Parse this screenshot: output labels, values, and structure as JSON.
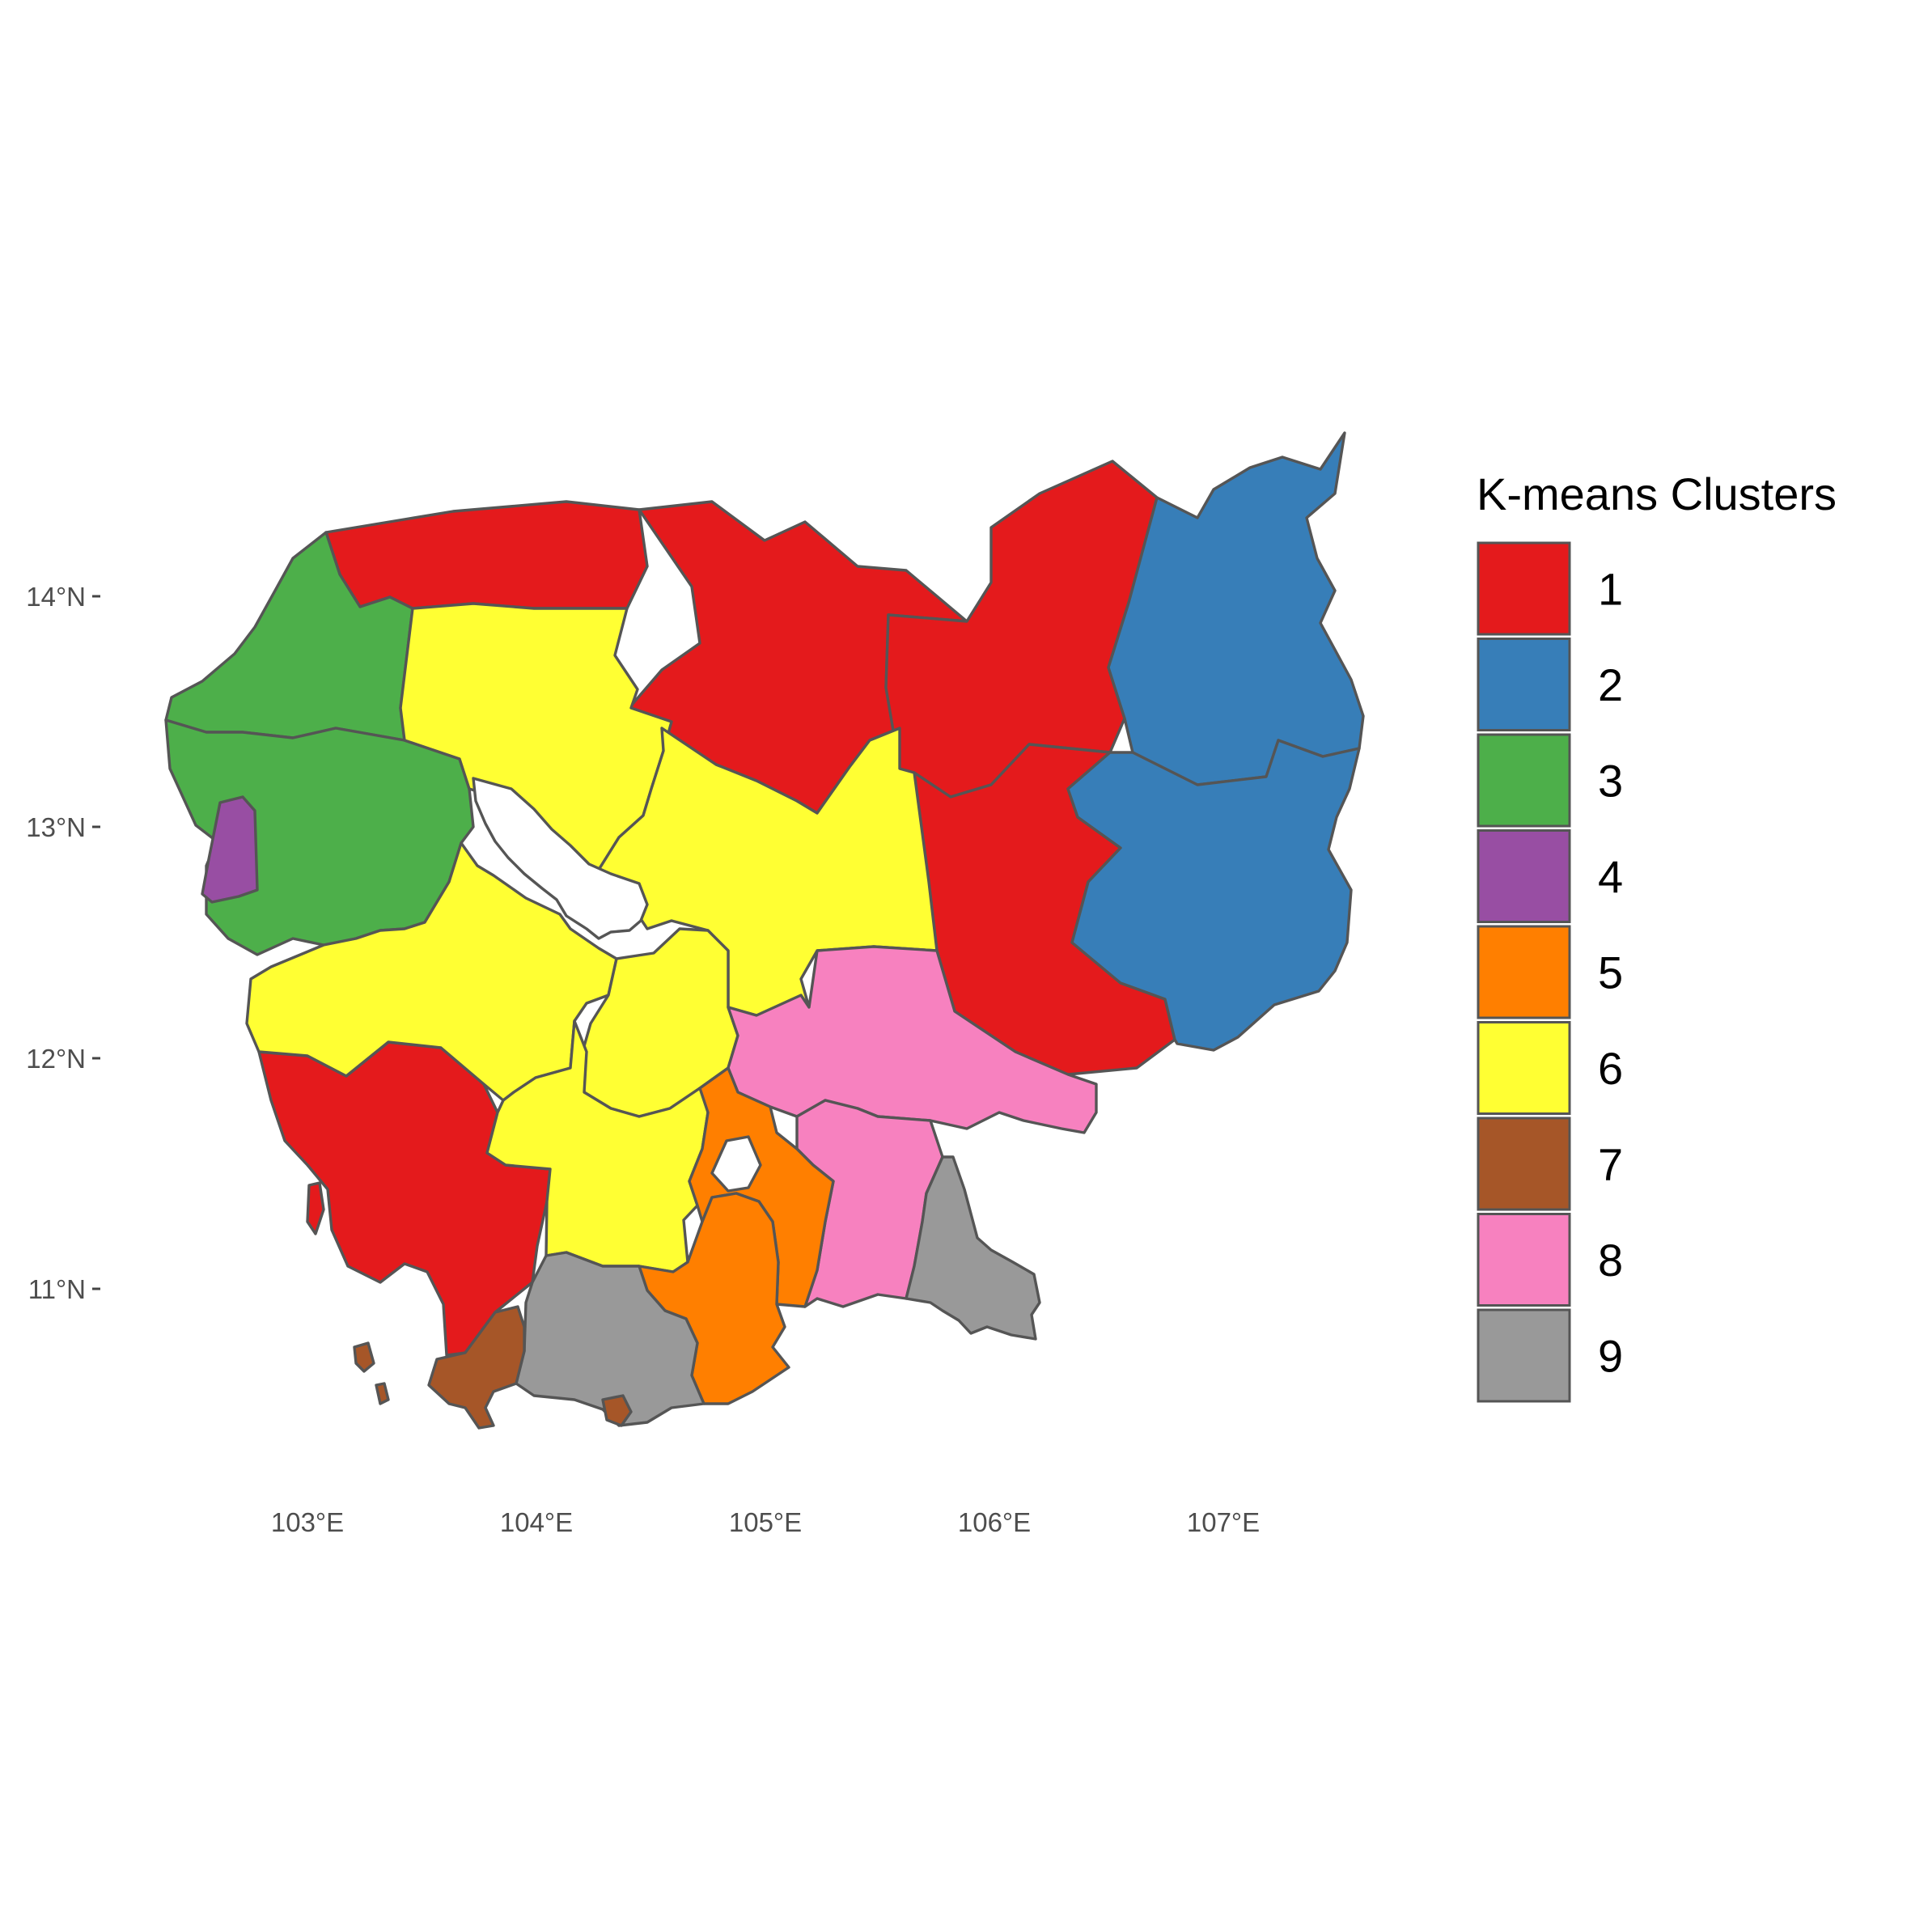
{
  "legend": {
    "title": "K-means Clusters",
    "items": [
      {
        "label": "1",
        "color": "#e41a1c"
      },
      {
        "label": "2",
        "color": "#377eb8"
      },
      {
        "label": "3",
        "color": "#4daf4a"
      },
      {
        "label": "4",
        "color": "#984ea3"
      },
      {
        "label": "5",
        "color": "#ff7f00"
      },
      {
        "label": "6",
        "color": "#ffff33"
      },
      {
        "label": "7",
        "color": "#a65628"
      },
      {
        "label": "8",
        "color": "#f781bf"
      },
      {
        "label": "9",
        "color": "#999999"
      }
    ]
  },
  "axes": {
    "x_ticks": [
      "103°E",
      "104°E",
      "105°E",
      "106°E",
      "107°E"
    ],
    "y_ticks": [
      "14°N",
      "13°N",
      "12°N",
      "11°N"
    ]
  },
  "border_color": "#555555"
}
